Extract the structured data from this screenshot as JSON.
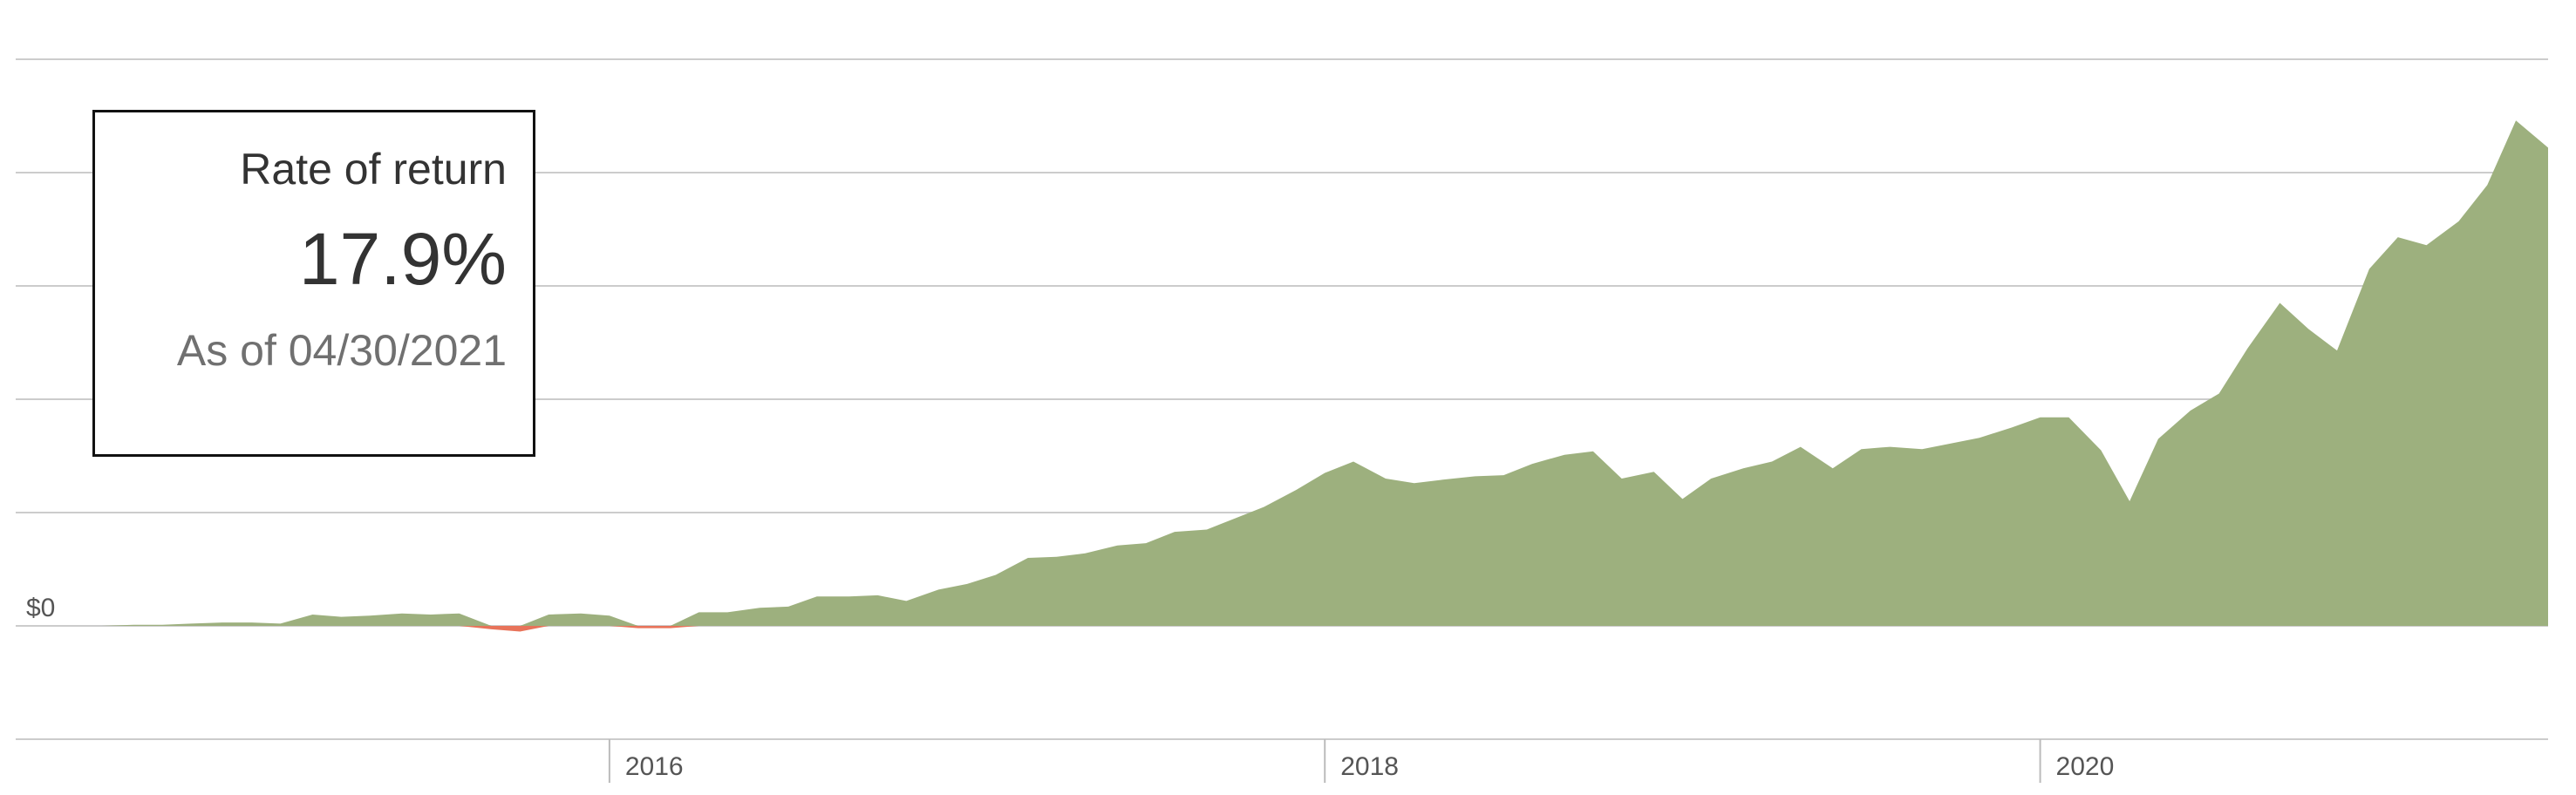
{
  "callout": {
    "title": "Rate of return",
    "value": "17.9%",
    "as_of": "As of 04/30/2021"
  },
  "chart_data": {
    "type": "area",
    "title": "",
    "xlabel": "",
    "ylabel": "",
    "x_ticks": [
      "2016",
      "2018",
      "2020"
    ],
    "y_labels": [
      "$0"
    ],
    "grid": true,
    "ylim": [
      -1.0,
      5.0
    ],
    "xlim": [
      2014.34,
      2021.42
    ],
    "colors": {
      "positive": "#9db07e",
      "negative": "#e8735a",
      "grid": "#cccccc"
    },
    "series": [
      {
        "x": [
          2014.34,
          2014.42,
          2014.5,
          2014.58,
          2014.67,
          2014.75,
          2014.83,
          2014.92,
          2015.0,
          2015.08,
          2015.17,
          2015.25,
          2015.33,
          2015.42,
          2015.5,
          2015.58,
          2015.67,
          2015.75,
          2015.83,
          2015.92,
          2016.0,
          2016.08,
          2016.17,
          2016.25,
          2016.33,
          2016.42,
          2016.5,
          2016.58,
          2016.67,
          2016.75,
          2016.83,
          2016.92,
          2017.0,
          2017.08,
          2017.17,
          2017.25,
          2017.33,
          2017.42,
          2017.5,
          2017.58,
          2017.67,
          2017.75,
          2017.83,
          2017.92,
          2018.0,
          2018.08,
          2018.17,
          2018.25,
          2018.33,
          2018.42,
          2018.5,
          2018.58,
          2018.67,
          2018.75,
          2018.83,
          2018.92,
          2019.0,
          2019.08,
          2019.17,
          2019.25,
          2019.33,
          2019.42,
          2019.5,
          2019.58,
          2019.67,
          2019.75,
          2019.83,
          2019.92,
          2020.0,
          2020.08,
          2020.17,
          2020.25,
          2020.33,
          2020.42,
          2020.5,
          2020.58,
          2020.67,
          2020.75,
          2020.83,
          2020.92,
          2021.0,
          2021.08,
          2021.17,
          2021.25,
          2021.33,
          2021.42
        ],
        "values": [
          0.0,
          0.0,
          0.0,
          0.0,
          0.01,
          0.01,
          0.02,
          0.03,
          0.03,
          0.02,
          0.1,
          0.08,
          0.09,
          0.11,
          0.1,
          0.11,
          -0.03,
          -0.05,
          0.1,
          0.11,
          0.09,
          -0.02,
          -0.02,
          0.12,
          0.12,
          0.16,
          0.17,
          0.26,
          0.26,
          0.27,
          0.22,
          0.32,
          0.37,
          0.45,
          0.6,
          0.61,
          0.64,
          0.71,
          0.73,
          0.83,
          0.85,
          0.95,
          1.05,
          1.2,
          1.35,
          1.45,
          1.3,
          1.26,
          1.29,
          1.32,
          1.33,
          1.43,
          1.51,
          1.54,
          1.3,
          1.36,
          1.12,
          1.3,
          1.39,
          1.45,
          1.58,
          1.39,
          1.56,
          1.58,
          1.56,
          1.61,
          1.66,
          1.75,
          1.84,
          1.84,
          1.55,
          1.1,
          1.65,
          1.9,
          2.05,
          2.45,
          2.85,
          2.62,
          2.43,
          3.15,
          3.43,
          3.36,
          3.57,
          3.89,
          4.46,
          4.22
        ]
      }
    ]
  }
}
